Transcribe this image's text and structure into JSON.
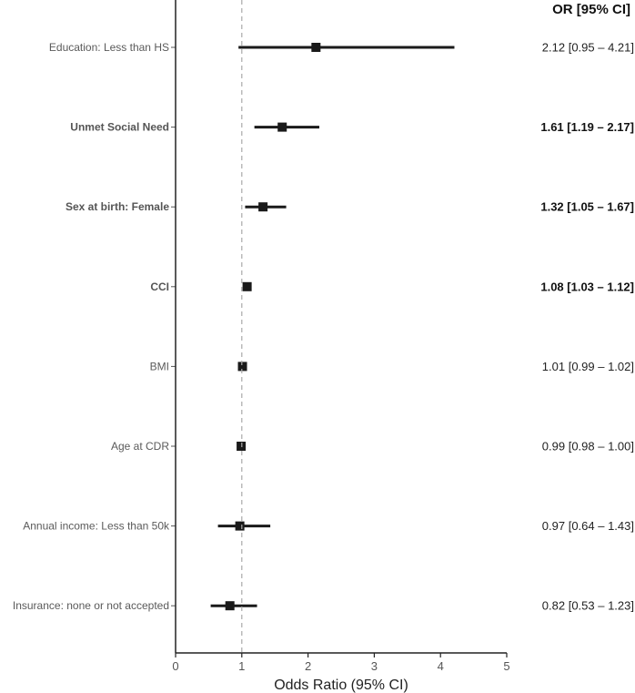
{
  "chart_data": {
    "type": "forest",
    "xlabel": "Odds Ratio (95% CI)",
    "xlim": [
      0,
      5
    ],
    "xticks": [
      0,
      1,
      2,
      3,
      4,
      5
    ],
    "xtick_labels": [
      "0",
      "1",
      "2",
      "3",
      "4",
      "5"
    ],
    "reference_line": 1,
    "or_column_header": "OR [95% CI]",
    "grid": false,
    "rows": [
      {
        "label": "Education: Less than HS",
        "or": 2.12,
        "lower": 0.95,
        "upper": 4.21,
        "text": "2.12 [0.95 – 4.21]",
        "bold": false
      },
      {
        "label": "Unmet Social Need",
        "or": 1.61,
        "lower": 1.19,
        "upper": 2.17,
        "text": "1.61 [1.19 – 2.17]",
        "bold": true
      },
      {
        "label": "Sex at birth: Female",
        "or": 1.32,
        "lower": 1.05,
        "upper": 1.67,
        "text": "1.32 [1.05 – 1.67]",
        "bold": true
      },
      {
        "label": "CCI",
        "or": 1.08,
        "lower": 1.03,
        "upper": 1.12,
        "text": "1.08 [1.03 – 1.12]",
        "bold": true
      },
      {
        "label": "BMI",
        "or": 1.01,
        "lower": 0.99,
        "upper": 1.02,
        "text": "1.01 [0.99 – 1.02]",
        "bold": false
      },
      {
        "label": "Age at CDR",
        "or": 0.99,
        "lower": 0.98,
        "upper": 1.0,
        "text": "0.99 [0.98 – 1.00]",
        "bold": false
      },
      {
        "label": "Annual income: Less than 50k",
        "or": 0.97,
        "lower": 0.64,
        "upper": 1.43,
        "text": "0.97 [0.64 – 1.43]",
        "bold": false
      },
      {
        "label": "Insurance: none or not accepted",
        "or": 0.82,
        "lower": 0.53,
        "upper": 1.23,
        "text": "0.82 [0.53 – 1.23]",
        "bold": false
      }
    ]
  }
}
